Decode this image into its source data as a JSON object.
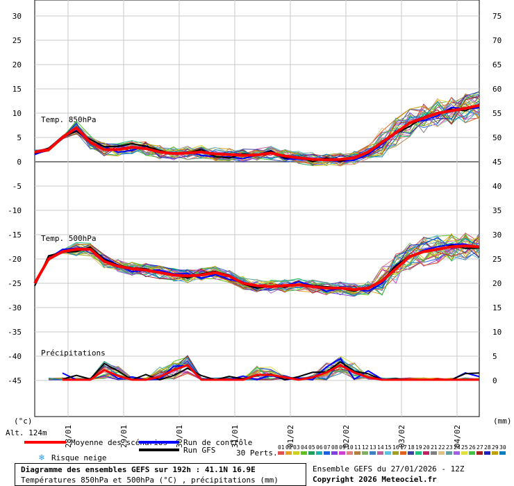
{
  "chart_data": {
    "type": "line",
    "x_dates": [
      "28/01",
      "29/01",
      "30/01",
      "31/01",
      "01/02",
      "02/02",
      "03/02",
      "04/02"
    ],
    "left_axis": {
      "unit": "(°c)",
      "ticks": [
        30,
        25,
        20,
        15,
        10,
        5,
        0,
        -5,
        -10,
        -15,
        -20,
        -25,
        -30,
        -35,
        -40,
        -45
      ]
    },
    "right_axis": {
      "unit": "(mm)",
      "ticks": [
        75,
        70,
        65,
        60,
        55,
        50,
        45,
        40,
        35,
        30,
        25,
        20,
        15,
        10,
        5,
        0
      ]
    },
    "panel_labels": {
      "t850": "Temp. 850hPa",
      "t500": "Temp. 500hPa",
      "precip": "Précipitations"
    },
    "altitude": "Alt. 124m",
    "t850_mean": [
      2,
      2.5,
      5,
      7,
      4,
      2.5,
      2.5,
      3,
      2.7,
      2,
      1.7,
      1.8,
      2,
      1.6,
      1.5,
      1.3,
      1.4,
      1.8,
      1.2,
      0.8,
      0.5,
      0.4,
      0.5,
      0.8,
      2,
      4,
      6,
      8,
      9,
      10,
      10.5,
      11,
      11.6
    ],
    "t500_mean": [
      -25,
      -20,
      -18.5,
      -18,
      -18,
      -20.5,
      -21.5,
      -22,
      -22.3,
      -22.8,
      -23.3,
      -23.5,
      -23.3,
      -22.8,
      -23.5,
      -25,
      -25.5,
      -25.7,
      -25.5,
      -25.3,
      -25.7,
      -26,
      -26,
      -26.3,
      -26,
      -24.5,
      -22,
      -19.5,
      -18.5,
      -18,
      -17.5,
      -17.3,
      -17.5
    ],
    "precip_mean": [
      null,
      null,
      0,
      0,
      0,
      2,
      0.8,
      0,
      0,
      0.6,
      2,
      3,
      0,
      0,
      0,
      0,
      1,
      1,
      0.5,
      0,
      0.5,
      1.5,
      3,
      1.5,
      0.5,
      0,
      0,
      0,
      0,
      0,
      0,
      0,
      0
    ],
    "legend": {
      "mean": "Moyenne des scénarios",
      "control": "Run de contrôle",
      "gfs": "Run GFS",
      "snow": "Risque neige",
      "perts": "30 Perts.",
      "member_numbers": [
        "01",
        "02",
        "03",
        "04",
        "05",
        "06",
        "07",
        "08",
        "09",
        "10",
        "11",
        "12",
        "13",
        "14",
        "15",
        "16",
        "17",
        "18",
        "19",
        "20",
        "21",
        "22",
        "23",
        "24",
        "25",
        "26",
        "27",
        "28",
        "29",
        "30"
      ],
      "member_colors": [
        "#e05050",
        "#e8a020",
        "#d0d020",
        "#60c020",
        "#20a060",
        "#20b0b0",
        "#2060e0",
        "#8040e0",
        "#d040d0",
        "#e08080",
        "#b08040",
        "#80b060",
        "#4080c0",
        "#c060a0",
        "#60c0e0",
        "#a0a020",
        "#e06020",
        "#4040a0",
        "#20c080",
        "#c02060",
        "#808080",
        "#e0c080",
        "#60a0a0",
        "#a060e0",
        "#e0e040",
        "#40c040",
        "#a02020",
        "#2020c0",
        "#c0a000",
        "#0080c0"
      ]
    },
    "footer": {
      "title": "Diagramme des ensembles GEFS sur 192h : 41.1N 16.9E",
      "subtitle": "Températures 850hPa et 500hPa (°C) , précipitations (mm)",
      "run": "Ensemble GEFS du 27/01/2026 - 12Z",
      "copyright": "Copyright 2026 Meteociel.fr"
    },
    "colors": {
      "mean": "#ff0000",
      "control": "#0000ff",
      "gfs": "#000000",
      "grid": "#c8c8c8",
      "zero": "#808080",
      "snow": "#2a9df4"
    }
  }
}
